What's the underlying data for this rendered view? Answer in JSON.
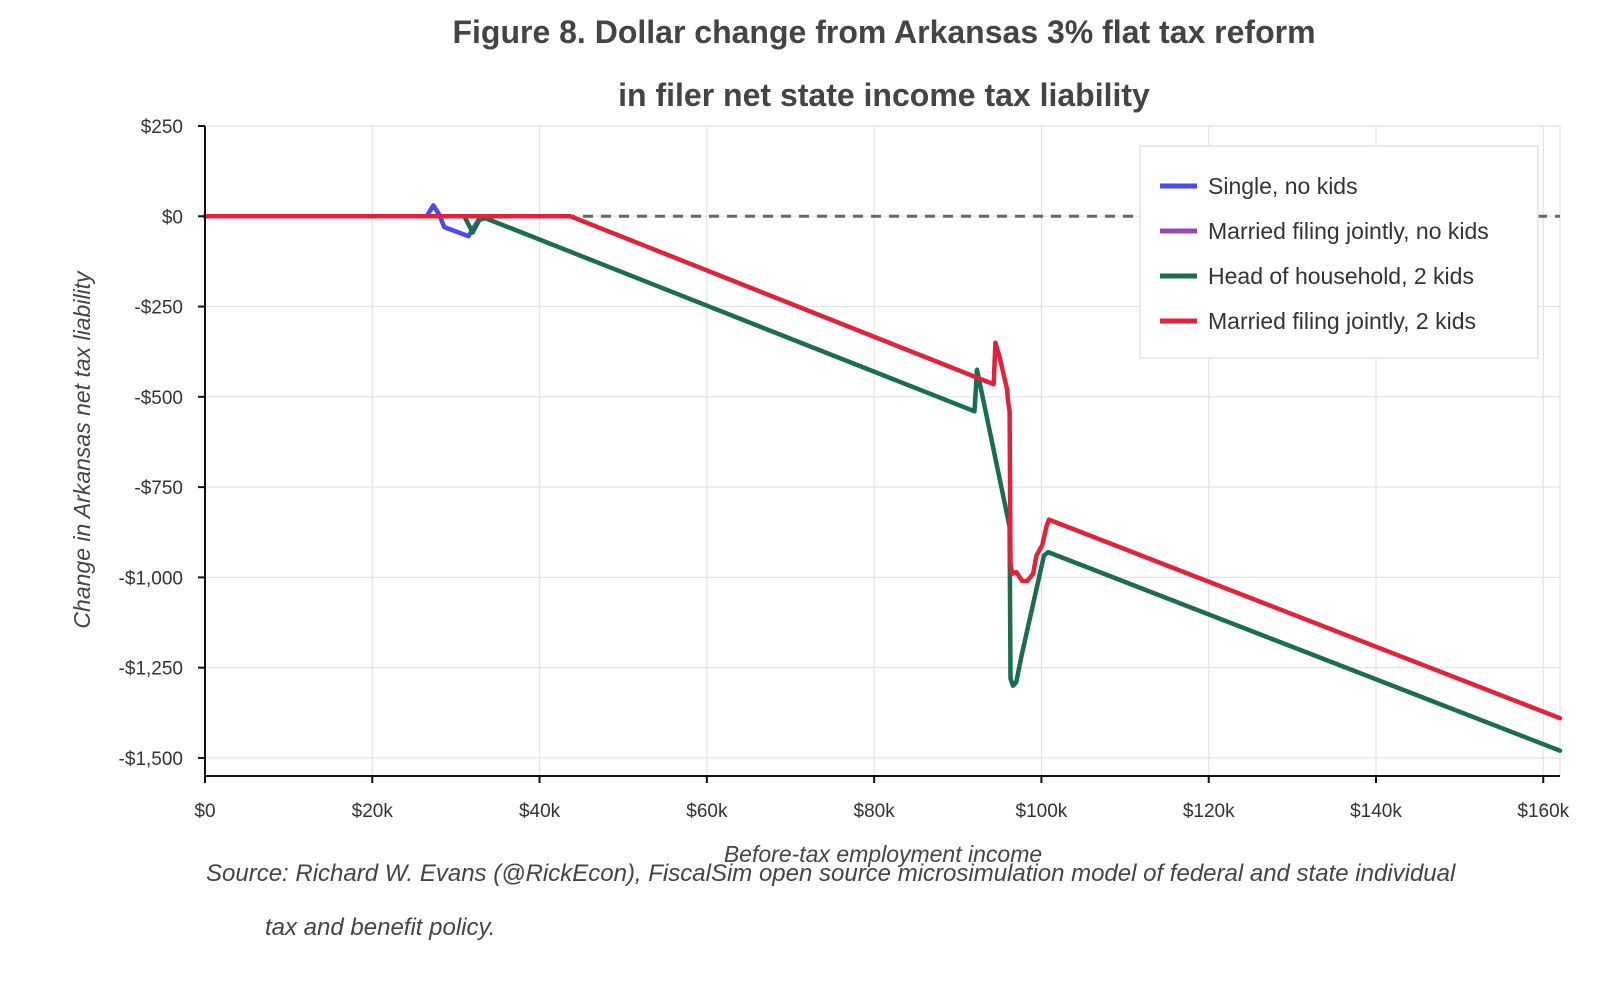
{
  "chart_data": {
    "type": "line",
    "title": "Figure 8. Dollar change from Arkansas 3% flat tax reform",
    "subtitle": "in filer net state income tax liability",
    "xlabel": "Before-tax employment income",
    "ylabel": "Change in Arkansas net tax liability",
    "xlim": [
      0,
      162000
    ],
    "ylim": [
      -1550,
      250
    ],
    "x_ticks": [
      0,
      20000,
      40000,
      60000,
      80000,
      100000,
      120000,
      140000,
      160000
    ],
    "x_tick_labels": [
      "$0",
      "$20k",
      "$40k",
      "$60k",
      "$80k",
      "$100k",
      "$120k",
      "$140k",
      "$160k"
    ],
    "y_ticks": [
      250,
      0,
      -250,
      -500,
      -750,
      -1000,
      -1250,
      -1500
    ],
    "y_tick_labels": [
      "$250",
      "$0",
      "-$250",
      "-$500",
      "-$750",
      "-$1,000",
      "-$1,250",
      "-$1,500"
    ],
    "grid": true,
    "legend_position": "top-right",
    "zero_line": {
      "y": 0,
      "style": "dashed",
      "color": "#666666"
    },
    "series": [
      {
        "name": "Single, no kids",
        "color": "#4a4af5",
        "points": [
          [
            0,
            0
          ],
          [
            26500,
            0
          ],
          [
            27300,
            30
          ],
          [
            28000,
            5
          ],
          [
            28600,
            -30
          ],
          [
            31500,
            -55
          ],
          [
            32700,
            -10
          ],
          [
            33500,
            -5
          ],
          [
            34500,
            0
          ]
        ]
      },
      {
        "name": "Married filing jointly, no kids",
        "color": "#9b46b0",
        "points": [
          [
            0,
            0
          ],
          [
            34000,
            0
          ],
          [
            43500,
            0
          ]
        ]
      },
      {
        "name": "Head of household, 2 kids",
        "color": "#1a6e4a",
        "points": [
          [
            0,
            0
          ],
          [
            31000,
            0
          ],
          [
            32000,
            -45
          ],
          [
            32800,
            -10
          ],
          [
            33500,
            -5
          ],
          [
            92000,
            -540
          ],
          [
            92300,
            -425
          ],
          [
            96200,
            -860
          ],
          [
            96300,
            -1280
          ],
          [
            96600,
            -1300
          ],
          [
            97000,
            -1290
          ],
          [
            97600,
            -1220
          ],
          [
            100300,
            -940
          ],
          [
            100800,
            -930
          ],
          [
            162000,
            -1480
          ]
        ]
      },
      {
        "name": "Married filing jointly, 2 kids",
        "color": "#e0233a",
        "points": [
          [
            0,
            0
          ],
          [
            34500,
            0
          ],
          [
            42500,
            0
          ],
          [
            43700,
            0
          ],
          [
            94300,
            -465
          ],
          [
            94500,
            -350
          ],
          [
            95000,
            -390
          ],
          [
            95500,
            -440
          ],
          [
            95900,
            -480
          ],
          [
            96000,
            -510
          ],
          [
            96200,
            -540
          ],
          [
            96300,
            -960
          ],
          [
            96500,
            -990
          ],
          [
            97000,
            -985
          ],
          [
            97700,
            -1010
          ],
          [
            98300,
            -1010
          ],
          [
            99000,
            -990
          ],
          [
            99400,
            -940
          ],
          [
            100100,
            -910
          ],
          [
            100600,
            -860
          ],
          [
            100900,
            -840
          ],
          [
            162000,
            -1390
          ]
        ]
      }
    ]
  },
  "source": {
    "line1": "Source: Richard W. Evans (@RickEcon), FiscalSim open source microsimulation model of federal and state individual",
    "line2": "tax and benefit policy."
  }
}
